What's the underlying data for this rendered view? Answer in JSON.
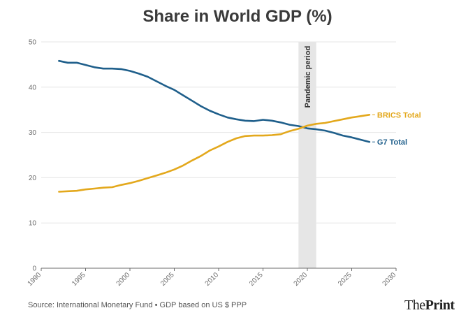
{
  "chart_data": {
    "type": "line",
    "title": "Share in World GDP (%)",
    "xlabel": "",
    "ylabel": "",
    "xlim": [
      1990,
      2030
    ],
    "ylim": [
      0,
      50
    ],
    "x_ticks": [
      1990,
      1995,
      2000,
      2005,
      2010,
      2015,
      2020,
      2025,
      2030
    ],
    "y_ticks": [
      0,
      10,
      20,
      30,
      40,
      50
    ],
    "annotation": {
      "label": "Pandemic period",
      "x_start": 2019,
      "x_end": 2021
    },
    "series": [
      {
        "name": "G7 Total",
        "color": "#1f5f8b",
        "x": [
          1992,
          1993,
          1994,
          1995,
          1996,
          1997,
          1998,
          1999,
          2000,
          2001,
          2002,
          2003,
          2004,
          2005,
          2006,
          2007,
          2008,
          2009,
          2010,
          2011,
          2012,
          2013,
          2014,
          2015,
          2016,
          2017,
          2018,
          2019,
          2020,
          2021,
          2022,
          2023,
          2024,
          2025,
          2026,
          2027
        ],
        "values": [
          45.8,
          45.4,
          45.4,
          44.9,
          44.4,
          44.1,
          44.1,
          44.0,
          43.6,
          43.0,
          42.3,
          41.3,
          40.3,
          39.4,
          38.2,
          37.0,
          35.8,
          34.8,
          34.0,
          33.3,
          32.9,
          32.6,
          32.5,
          32.8,
          32.6,
          32.2,
          31.7,
          31.4,
          30.9,
          30.7,
          30.4,
          29.9,
          29.3,
          28.9,
          28.4,
          27.9
        ]
      },
      {
        "name": "BRICS Total",
        "color": "#e3a81c",
        "x": [
          1992,
          1993,
          1994,
          1995,
          1996,
          1997,
          1998,
          1999,
          2000,
          2001,
          2002,
          2003,
          2004,
          2005,
          2006,
          2007,
          2008,
          2009,
          2010,
          2011,
          2012,
          2013,
          2014,
          2015,
          2016,
          2017,
          2018,
          2019,
          2020,
          2021,
          2022,
          2023,
          2024,
          2025,
          2026,
          2027
        ],
        "values": [
          16.9,
          17.0,
          17.1,
          17.4,
          17.6,
          17.8,
          17.9,
          18.4,
          18.8,
          19.3,
          19.9,
          20.5,
          21.1,
          21.8,
          22.7,
          23.8,
          24.8,
          26.0,
          26.9,
          27.9,
          28.7,
          29.2,
          29.3,
          29.3,
          29.4,
          29.6,
          30.3,
          30.8,
          31.5,
          31.9,
          32.1,
          32.5,
          32.9,
          33.3,
          33.6,
          33.9
        ]
      }
    ]
  },
  "footer": {
    "source": "Source: International Monetary Fund • GDP based on US $ PPP",
    "brand_part1": "The",
    "brand_part2": "Print"
  }
}
